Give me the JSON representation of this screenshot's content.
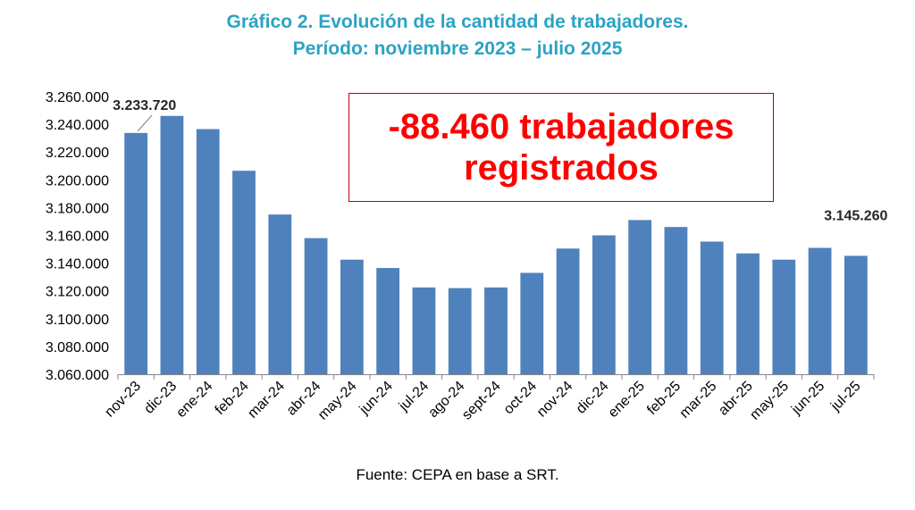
{
  "title_line1": "Gráfico 2. Evolución de la cantidad de trabajadores.",
  "title_line2": "Período: noviembre 2023 – julio 2025",
  "callout": "-88.460 trabajadores registrados",
  "source": "Fuente: CEPA en base a SRT.",
  "colors": {
    "bar": "#4f81bd",
    "title": "#2ba3c4",
    "callout": "#ff0000",
    "callout_border": "#c00000"
  },
  "chart_data": {
    "type": "bar",
    "title": "Gráfico 2. Evolución de la cantidad de trabajadores. Período: noviembre 2023 – julio 2025",
    "categories": [
      "nov-23",
      "dic-23",
      "ene-24",
      "feb-24",
      "mar-24",
      "abr-24",
      "may-24",
      "jun-24",
      "jul-24",
      "ago-24",
      "sept-24",
      "oct-24",
      "nov-24",
      "dic-24",
      "ene-25",
      "feb-25",
      "mar-25",
      "abr-25",
      "may-25",
      "jun-25",
      "jul-25"
    ],
    "values": [
      3233720,
      3246000,
      3236500,
      3206500,
      3175000,
      3158000,
      3142500,
      3136500,
      3122500,
      3122000,
      3122500,
      3133000,
      3150500,
      3160000,
      3171000,
      3166000,
      3155500,
      3147000,
      3142500,
      3151000,
      3145260
    ],
    "data_labels": [
      {
        "index": 0,
        "text": "3.233.720"
      },
      {
        "index": 20,
        "text": "3.145.260"
      }
    ],
    "y_ticks": [
      "3.060.000",
      "3.080.000",
      "3.100.000",
      "3.120.000",
      "3.140.000",
      "3.160.000",
      "3.180.000",
      "3.200.000",
      "3.220.000",
      "3.240.000",
      "3.260.000"
    ],
    "ylim": [
      3060000,
      3260000
    ],
    "xlabel": "",
    "ylabel": "",
    "grid": false,
    "legend": "none"
  }
}
